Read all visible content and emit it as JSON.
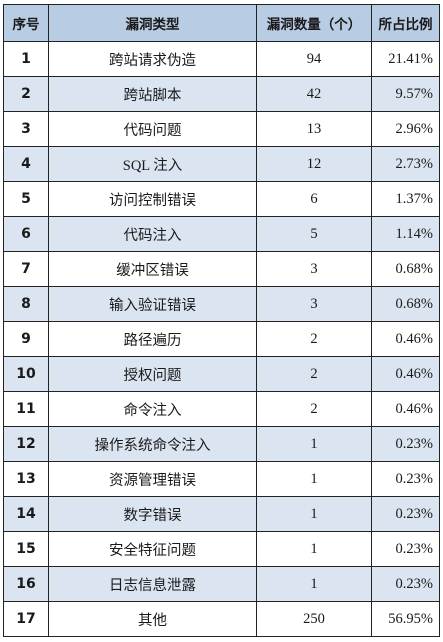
{
  "table": {
    "headers": [
      "序号",
      "漏洞类型",
      "漏洞数量（个）",
      "所占比例"
    ],
    "rows": [
      [
        "1",
        "跨站请求伪造",
        "94",
        "21.41%"
      ],
      [
        "2",
        "跨站脚本",
        "42",
        "9.57%"
      ],
      [
        "3",
        "代码问题",
        "13",
        "2.96%"
      ],
      [
        "4",
        "SQL 注入",
        "12",
        "2.73%"
      ],
      [
        "5",
        "访问控制错误",
        "6",
        "1.37%"
      ],
      [
        "6",
        "代码注入",
        "5",
        "1.14%"
      ],
      [
        "7",
        "缓冲区错误",
        "3",
        "0.68%"
      ],
      [
        "8",
        "输入验证错误",
        "3",
        "0.68%"
      ],
      [
        "9",
        "路径遍历",
        "2",
        "0.46%"
      ],
      [
        "10",
        "授权问题",
        "2",
        "0.46%"
      ],
      [
        "11",
        "命令注入",
        "2",
        "0.46%"
      ],
      [
        "12",
        "操作系统命令注入",
        "1",
        "0.23%"
      ],
      [
        "13",
        "资源管理错误",
        "1",
        "0.23%"
      ],
      [
        "14",
        "数字错误",
        "1",
        "0.23%"
      ],
      [
        "15",
        "安全特征问题",
        "1",
        "0.23%"
      ],
      [
        "16",
        "日志信息泄露",
        "1",
        "0.23%"
      ],
      [
        "17",
        "其他",
        "250",
        "56.95%"
      ]
    ]
  },
  "colors": {
    "header_bg": "#b8cce4",
    "stripe_bg": "#dbe5f1",
    "border": "#222222"
  }
}
